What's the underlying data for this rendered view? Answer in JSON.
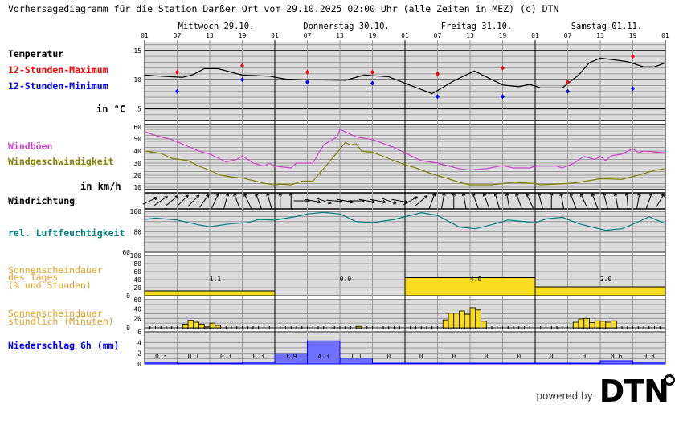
{
  "title": "Vorhersagediagramm für die Station Darßer Ort vom 29.10.2025 02:00 Uhr (alle Zeiten in MEZ)   (c) DTN",
  "days": [
    "Mittwoch 29.10.",
    "Donnerstag 30.10.",
    "Freitag 31.10.",
    "Samstag 01.11."
  ],
  "hour_ticks": [
    "01",
    "07",
    "13",
    "19",
    "01",
    "07",
    "13",
    "19",
    "01",
    "07",
    "13",
    "19",
    "01",
    "07",
    "13",
    "19",
    "01"
  ],
  "labels": {
    "temperature": "Temperatur",
    "max": "12-Stunden-Maximum",
    "min": "12-Stunden-Minimum",
    "temp_unit": "in °C",
    "gusts": "Windböen",
    "wind_speed": "Windgeschwindigkeit",
    "wind_unit": "in km/h",
    "wind_dir": "Windrichtung",
    "humidity": "rel. Luftfeuchtigkeit",
    "sun_daily_1": "Sonnenscheindauer",
    "sun_daily_2": "des Tages",
    "sun_daily_3": "(% und Stunden)",
    "sun_hourly_1": "Sonnenscheindauer",
    "sun_hourly_2": "stündlich (Minuten)",
    "precip": "Niederschlag 6h (mm)"
  },
  "footer": {
    "powered_by": "powered by",
    "brand": "DTN"
  },
  "colors": {
    "background": "#dcdcdc",
    "temp": "#000000",
    "max": "#ff0000",
    "min": "#0000ff",
    "gusts": "#cc44cc",
    "wind": "#808000",
    "humidity": "#008080",
    "sun": "#f8dc20",
    "sun_label": "#e8a020",
    "precip": "#7070ff",
    "precip_label": "#0000ff"
  },
  "chart_data": [
    {
      "type": "line",
      "title": "Temperatur",
      "ylabel": "in °C",
      "ylim": [
        3,
        16.5
      ],
      "yticks": [
        5,
        10,
        15
      ],
      "x_unit": "hours since 29.10. 01:00",
      "series": [
        {
          "name": "Temperatur",
          "x": [
            0,
            3,
            7,
            9,
            11,
            13.5,
            18,
            23,
            26,
            30,
            37,
            40.5,
            45,
            48,
            53,
            57,
            60.8,
            66,
            69,
            71,
            73,
            77,
            80,
            82,
            84,
            89,
            92,
            94,
            96
          ],
          "y": [
            10.8,
            10.6,
            10.4,
            10.9,
            11.9,
            11.9,
            10.8,
            10.6,
            10.1,
            10.0,
            9.9,
            10.8,
            10.5,
            9.4,
            7.6,
            9.8,
            11.5,
            9.1,
            8.8,
            9.2,
            8.6,
            8.6,
            10.8,
            12.9,
            13.7,
            13.1,
            12.2,
            12.2,
            12.9
          ]
        },
        {
          "name": "12-Stunden-Maximum",
          "x": [
            6,
            18,
            30,
            42,
            54,
            66,
            78,
            90
          ],
          "y": [
            11.3,
            12.4,
            11.3,
            11.3,
            11.0,
            12.0,
            9.6,
            14.0
          ]
        },
        {
          "name": "12-Stunden-Minimum",
          "x": [
            6,
            18,
            30,
            42,
            54,
            66,
            78,
            90
          ],
          "y": [
            8.0,
            10.0,
            9.6,
            9.4,
            7.1,
            7.1,
            8.0,
            8.5
          ]
        }
      ]
    },
    {
      "type": "line",
      "title": "Wind",
      "ylabel": "in km/h",
      "ylim": [
        8,
        62
      ],
      "yticks": [
        10,
        20,
        30,
        40,
        50,
        60
      ],
      "series": [
        {
          "name": "Windböen",
          "x": [
            0,
            2,
            5,
            10,
            12,
            15,
            17,
            18,
            20,
            22,
            23,
            24,
            27,
            28,
            31,
            33,
            35.5,
            36,
            39,
            42,
            46,
            48,
            51,
            54,
            58,
            60,
            63,
            66,
            68,
            71,
            72,
            76,
            77,
            79,
            81,
            83,
            84,
            85,
            86,
            88,
            90,
            91,
            92,
            96
          ],
          "y": [
            56,
            53,
            49.5,
            40,
            37.5,
            31,
            33,
            36,
            30,
            27.5,
            30,
            27.5,
            26,
            30,
            30,
            45,
            51.7,
            58,
            51.7,
            49.5,
            42.9,
            38.5,
            32,
            30,
            25.4,
            24.3,
            25.4,
            28,
            26,
            26,
            27.5,
            27.5,
            26,
            29.6,
            35.5,
            33,
            35.5,
            32,
            36,
            37.5,
            42,
            38.5,
            40,
            38.5
          ]
        },
        {
          "name": "Windgeschwindigkeit",
          "x": [
            0,
            3,
            5,
            8,
            10,
            12,
            14,
            16,
            18,
            20,
            22,
            24,
            25,
            27,
            29,
            31,
            33,
            35,
            37,
            38,
            39,
            40,
            42,
            44,
            46,
            48,
            50,
            53,
            56,
            58,
            60,
            64,
            68,
            72,
            73,
            78,
            80,
            84,
            88,
            91,
            94,
            96
          ],
          "y": [
            40,
            38,
            34,
            32,
            27.5,
            24,
            20,
            18.5,
            17.7,
            15.5,
            13.3,
            11.8,
            12.6,
            12,
            15,
            15,
            25.4,
            36,
            47,
            45,
            46,
            40,
            39,
            35.5,
            32,
            28.6,
            26,
            21,
            17,
            14,
            12,
            12,
            14,
            13,
            12,
            13,
            14,
            17,
            16.5,
            20,
            24,
            25.4
          ]
        }
      ]
    },
    {
      "type": "vector",
      "title": "Windrichtung",
      "x_step_hours": 2,
      "arrow_direction_deg": [
        65,
        55,
        50,
        45,
        45,
        35,
        25,
        15,
        -20,
        -25,
        -20,
        -15,
        0,
        0,
        90,
        100,
        110,
        95,
        100,
        90,
        100,
        100,
        110,
        100,
        60,
        50,
        20,
        10,
        0,
        -10,
        -20,
        -20,
        -15,
        -10,
        -20,
        -25,
        -15,
        0,
        -10,
        -20,
        -25,
        -20,
        -15,
        -10,
        -5,
        10,
        20,
        30
      ]
    },
    {
      "type": "line",
      "title": "rel. Luftfeuchtigkeit",
      "ylim": [
        60,
        100
      ],
      "yticks": [
        60,
        80,
        100
      ],
      "series": [
        {
          "name": "rel. Luftfeuchtigkeit",
          "x": [
            0,
            2,
            6,
            10,
            12,
            16,
            19,
            21,
            24,
            28,
            30,
            33,
            36,
            39,
            42,
            46,
            48,
            51,
            54,
            58,
            61,
            64,
            67,
            70,
            72,
            74,
            77,
            80,
            83,
            85,
            88,
            91,
            93,
            96
          ],
          "y": [
            92,
            93.4,
            91.5,
            86.8,
            85,
            88,
            89,
            92,
            91.5,
            95,
            97.4,
            99,
            97.4,
            90,
            89,
            92,
            94.7,
            98.7,
            96,
            84.7,
            83,
            87,
            91.5,
            90,
            88.7,
            92.6,
            94.2,
            88,
            84,
            81.5,
            83,
            89.7,
            94.7,
            88
          ]
        }
      ]
    },
    {
      "type": "bar",
      "title": "Sonnenscheindauer des Tages (% und Stunden)",
      "ylim": [
        0,
        100
      ],
      "yticks": [
        0,
        20,
        40,
        60,
        80,
        100
      ],
      "categories": [
        "Mittwoch 29.10.",
        "Donnerstag 30.10.",
        "Freitag 31.10.",
        "Samstag 01.11."
      ],
      "values_percent": [
        12,
        0,
        45,
        22
      ],
      "value_labels": [
        "1.1",
        "0.0",
        "4.0",
        "2.0"
      ]
    },
    {
      "type": "bar",
      "title": "Sonnenscheindauer stündlich (Minuten)",
      "ylim": [
        0,
        60
      ],
      "yticks": [
        0,
        20,
        40,
        60
      ],
      "x_hours": [
        7,
        8,
        9,
        10,
        11,
        12,
        13,
        39,
        55,
        56,
        57,
        58,
        59,
        60,
        61,
        62,
        79,
        80,
        81,
        82,
        83,
        84,
        85,
        86
      ],
      "values": [
        8,
        16,
        12,
        8,
        2,
        10,
        5,
        3,
        17,
        31,
        31,
        36,
        29,
        43,
        38,
        14,
        12,
        19,
        20,
        11,
        15,
        14,
        12,
        15
      ]
    },
    {
      "type": "bar",
      "title": "Niederschlag 6h (mm)",
      "ylim": [
        0,
        6
      ],
      "yticks": [
        0,
        2,
        4,
        6
      ],
      "values": [
        0.3,
        0.1,
        0.1,
        0.3,
        1.9,
        4.3,
        1.1,
        0,
        0,
        0,
        0,
        0,
        0,
        0,
        0.6,
        0.3
      ],
      "value_labels": [
        "0.3",
        "0.1",
        "0.1",
        "0.3",
        "1.9",
        "4.3",
        "1.1",
        "0",
        "0",
        "0",
        "0",
        "0",
        "0",
        "0",
        "0.6",
        "0.3"
      ]
    }
  ]
}
